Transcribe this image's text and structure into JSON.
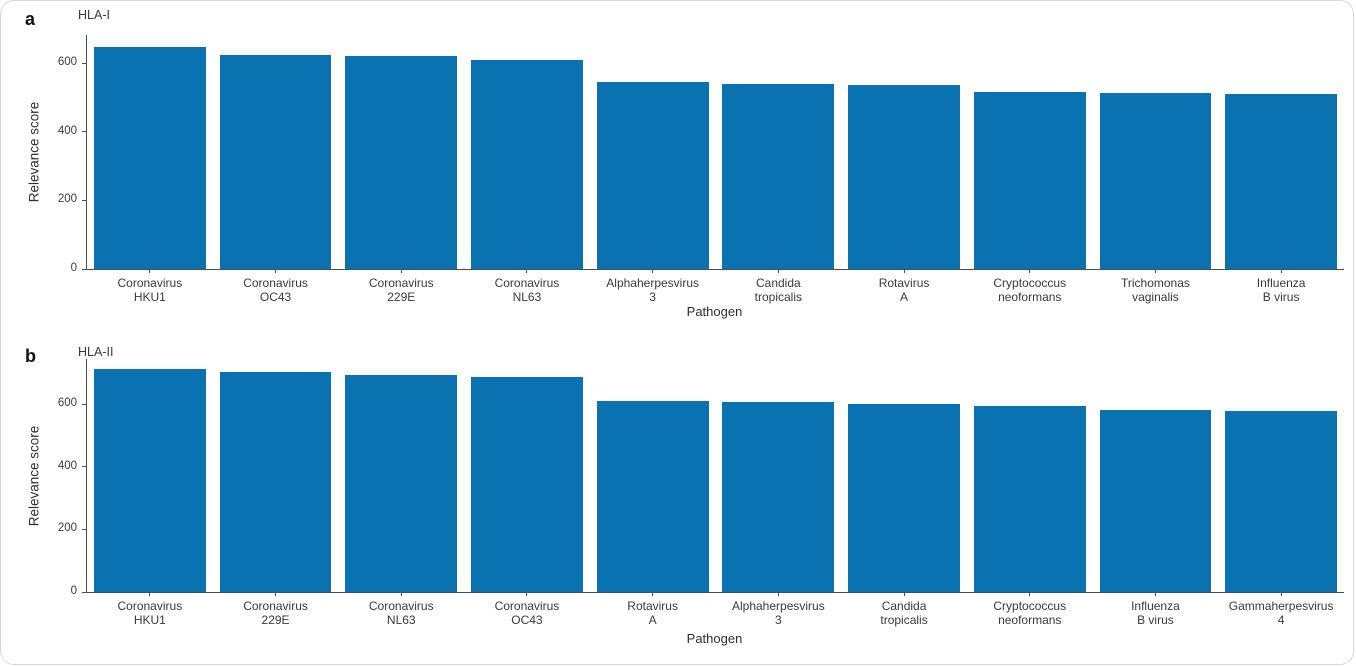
{
  "figure": {
    "bar_color": "#0b72b2",
    "axis_color": "#4d4d4d",
    "text_color": "#3a3a3a",
    "background": "#ffffff",
    "border_color": "#d8d8d8"
  },
  "chart_data": [
    {
      "type": "bar",
      "panel_letter": "a",
      "title": "HLA-I",
      "xlabel": "Pathogen",
      "ylabel": "Relevance score",
      "ylim": [
        0,
        682
      ],
      "yticks": [
        0,
        200,
        400,
        600
      ],
      "grid": false,
      "legend": null,
      "categories": [
        [
          "Coronavirus",
          "HKU1"
        ],
        [
          "Coronavirus",
          "OC43"
        ],
        [
          "Coronavirus",
          "229E"
        ],
        [
          "Coronavirus",
          "NL63"
        ],
        [
          "Alphaherpesvirus",
          "3"
        ],
        [
          "Candida",
          "tropicalis"
        ],
        [
          "Rotavirus",
          "A"
        ],
        [
          "Cryptococcus",
          "neoformans"
        ],
        [
          "Trichomonas",
          "vaginalis"
        ],
        [
          "Influenza",
          "B virus"
        ]
      ],
      "values": [
        646,
        623,
        622,
        608,
        546,
        538,
        536,
        515,
        512,
        510
      ]
    },
    {
      "type": "bar",
      "panel_letter": "b",
      "title": "HLA-II",
      "xlabel": "Pathogen",
      "ylabel": "Relevance score",
      "ylim": [
        0,
        744
      ],
      "yticks": [
        0,
        200,
        400,
        600
      ],
      "grid": false,
      "legend": null,
      "categories": [
        [
          "Coronavirus",
          "HKU1"
        ],
        [
          "Coronavirus",
          "229E"
        ],
        [
          "Coronavirus",
          "NL63"
        ],
        [
          "Coronavirus",
          "OC43"
        ],
        [
          "Rotavirus",
          "A"
        ],
        [
          "Alphaherpesvirus",
          "3"
        ],
        [
          "Candida",
          "tropicalis"
        ],
        [
          "Cryptococcus",
          "neoformans"
        ],
        [
          "Influenza",
          "B virus"
        ],
        [
          "Gammaherpesvirus",
          "4"
        ]
      ],
      "values": [
        713,
        703,
        694,
        687,
        610,
        606,
        601,
        595,
        582,
        578
      ]
    }
  ]
}
